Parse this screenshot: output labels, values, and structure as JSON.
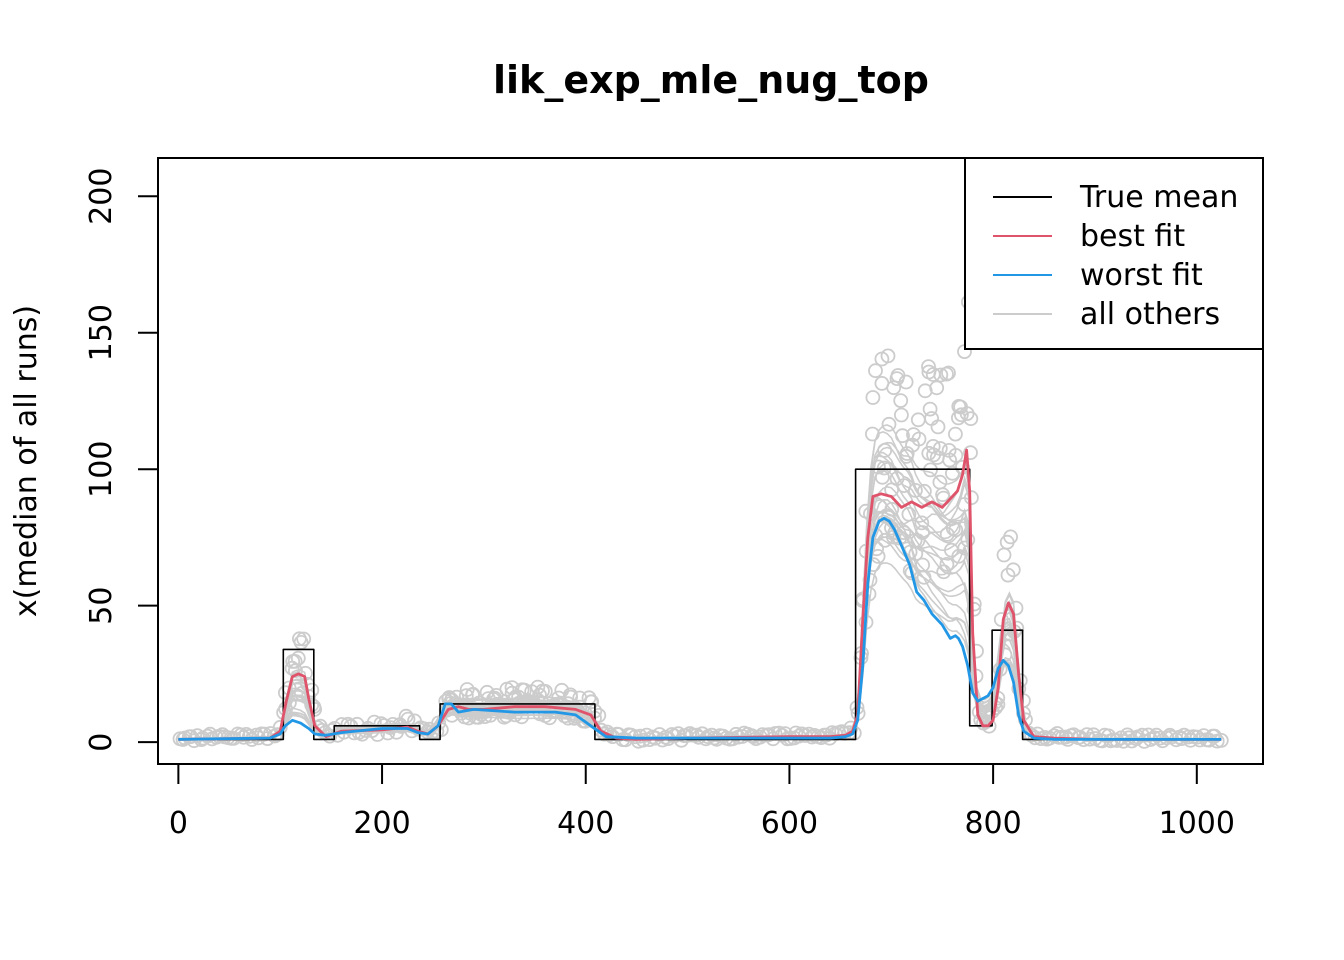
{
  "chart_data": {
    "type": "line",
    "title": "lik_exp_mle_nug_top",
    "xlabel": "",
    "ylabel": "x(median of all runs)",
    "xlim": [
      -20,
      1065
    ],
    "ylim": [
      -8,
      214
    ],
    "x_ticks": [
      0,
      200,
      400,
      600,
      800,
      1000
    ],
    "x_tick_labels": [
      "0",
      "200",
      "400",
      "600",
      "800",
      "1000"
    ],
    "y_ticks": [
      0,
      50,
      100,
      150,
      200
    ],
    "y_tick_labels": [
      "0",
      "50",
      "100",
      "150",
      "200"
    ],
    "grid": false,
    "legend_position": "top-right",
    "legend": [
      {
        "name": "True mean",
        "color": "#000000"
      },
      {
        "name": "best fit",
        "color": "#DF536B"
      },
      {
        "name": "worst fit",
        "color": "#2297E6"
      },
      {
        "name": "all others",
        "color": "#CCCCCC"
      }
    ],
    "series": [
      {
        "name": "True mean",
        "color": "#000000",
        "style": "step",
        "x": [
          0,
          103,
          103,
          133,
          133,
          153,
          153,
          237,
          237,
          257,
          257,
          409,
          409,
          665,
          665,
          777,
          777,
          799,
          799,
          829,
          829,
          1024
        ],
        "y": [
          1,
          1,
          34,
          34,
          1,
          1,
          6,
          6,
          1,
          1,
          14,
          14,
          1,
          1,
          100,
          100,
          6,
          6,
          41,
          41,
          1,
          1
        ]
      },
      {
        "name": "best fit",
        "color": "#DF536B",
        "x": [
          0,
          90,
          100,
          106,
          112,
          118,
          124,
          128,
          134,
          145,
          160,
          200,
          225,
          235,
          245,
          255,
          265,
          275,
          285,
          300,
          330,
          360,
          390,
          405,
          415,
          430,
          450,
          500,
          600,
          640,
          655,
          662,
          667,
          672,
          677,
          682,
          690,
          700,
          710,
          720,
          730,
          740,
          750,
          760,
          765,
          770,
          774,
          777,
          780,
          785,
          790,
          795,
          800,
          805,
          810,
          815,
          820,
          825,
          830,
          840,
          860,
          900,
          1024
        ],
        "y": [
          1,
          1.5,
          4,
          15,
          24,
          25,
          24,
          16,
          6,
          2,
          4,
          4.5,
          5.5,
          4,
          3,
          6,
          12,
          13,
          12,
          12,
          13,
          13,
          12,
          10,
          4,
          1.5,
          1,
          1.5,
          2,
          2,
          2.5,
          4,
          10,
          45,
          75,
          90,
          91,
          90,
          86,
          88,
          86,
          88,
          86,
          90,
          92,
          98,
          107,
          92,
          40,
          10,
          6,
          6,
          8,
          20,
          45,
          51,
          47,
          25,
          8,
          2,
          1.5,
          1,
          1
        ]
      },
      {
        "name": "worst fit",
        "color": "#2297E6",
        "x": [
          0,
          90,
          100,
          105,
          112,
          120,
          128,
          134,
          145,
          160,
          200,
          225,
          235,
          245,
          255,
          262,
          268,
          275,
          290,
          330,
          370,
          390,
          405,
          420,
          450,
          500,
          600,
          640,
          655,
          662,
          667,
          672,
          677,
          682,
          688,
          693,
          698,
          703,
          710,
          718,
          725,
          732,
          740,
          750,
          758,
          763,
          766,
          770,
          775,
          780,
          785,
          790,
          795,
          800,
          805,
          810,
          815,
          820,
          825,
          830,
          840,
          860,
          900,
          1024
        ],
        "y": [
          1,
          1.5,
          3,
          6,
          8,
          7,
          5,
          3,
          2.5,
          3.5,
          5,
          5,
          3.5,
          3,
          6,
          14,
          14,
          11,
          12,
          11,
          11,
          10,
          6,
          2,
          1.5,
          1.5,
          1.5,
          1.5,
          2,
          3,
          8,
          28,
          58,
          75,
          81,
          82,
          81,
          78,
          72,
          65,
          55,
          52,
          47,
          43,
          38,
          39,
          38,
          35,
          28,
          18,
          15,
          16,
          17,
          20,
          27,
          30,
          28,
          22,
          10,
          4,
          1.5,
          1,
          1,
          1
        ]
      }
    ]
  }
}
